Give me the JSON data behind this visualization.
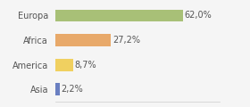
{
  "categories": [
    "Europa",
    "Africa",
    "America",
    "Asia"
  ],
  "values": [
    62.0,
    27.2,
    8.7,
    2.2
  ],
  "labels": [
    "62,0%",
    "27,2%",
    "8,7%",
    "2,2%"
  ],
  "bar_colors": [
    "#a8c077",
    "#e8a96a",
    "#f0d060",
    "#6a7fc1"
  ],
  "background_color": "#f5f5f5",
  "xlim": [
    0,
    80
  ],
  "label_fontsize": 7.0,
  "tick_fontsize": 7.0,
  "bar_height": 0.5
}
